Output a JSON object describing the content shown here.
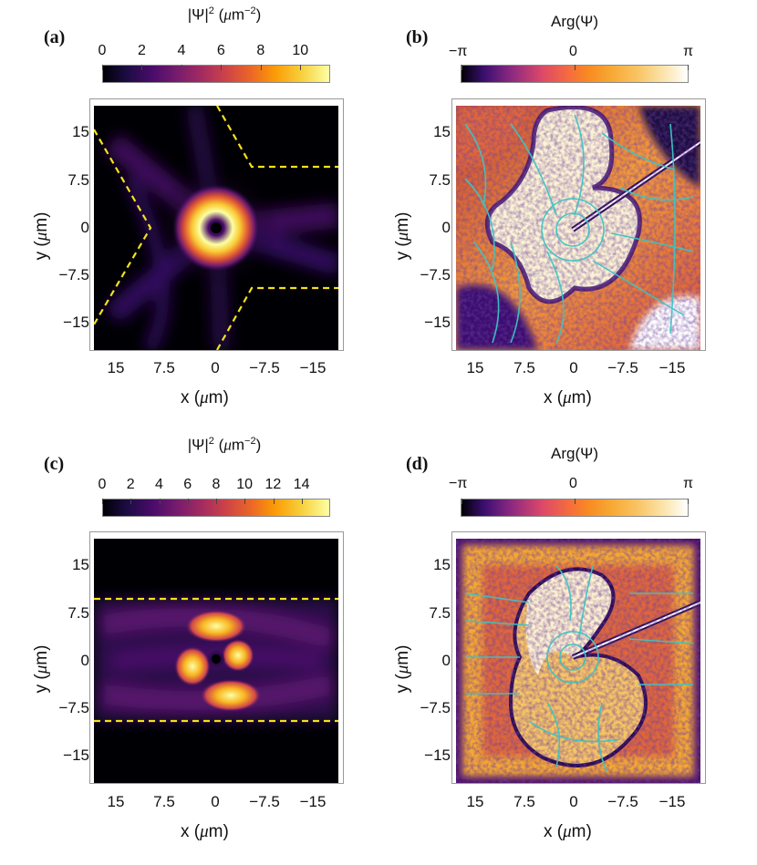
{
  "panels": {
    "a": {
      "label": "(a)",
      "cb_title_main": "|Ψ|",
      "cb_title_sup": "2",
      "cb_title_unit_pre": " (",
      "cb_title_mu": "μ",
      "cb_title_unit_post": "m",
      "cb_title_exp": "−2",
      "cb_title_close": ")",
      "cb_ticks": [
        "0",
        "2",
        "4",
        "6",
        "8",
        "10"
      ]
    },
    "b": {
      "label": "(b)",
      "cb_title": "Arg(Ψ)",
      "cb_ticks": [
        "−π",
        "0",
        "π"
      ]
    },
    "c": {
      "label": "(c)",
      "cb_title_main": "|Ψ|",
      "cb_title_sup": "2",
      "cb_title_unit_pre": " (",
      "cb_title_mu": "μ",
      "cb_title_unit_post": "m",
      "cb_title_exp": "−2",
      "cb_title_close": ")",
      "cb_ticks": [
        "0",
        "2",
        "4",
        "6",
        "8",
        "10",
        "12",
        "14"
      ]
    },
    "d": {
      "label": "(d)",
      "cb_title": "Arg(Ψ)",
      "cb_ticks": [
        "−π",
        "0",
        "π"
      ]
    }
  },
  "axes": {
    "x_label_pre": "x (",
    "x_label_mu": "μ",
    "x_label_post": "m)",
    "y_label_pre": "y (",
    "y_label_mu": "μ",
    "y_label_post": "m)",
    "x_ticks": [
      "15",
      "7.5",
      "0",
      "−7.5",
      "−15"
    ],
    "y_ticks": [
      "15",
      "7.5",
      "0",
      "−7.5",
      "−15"
    ]
  },
  "chart_data": [
    {
      "type": "heatmap",
      "panel": "a",
      "quantity": "|Ψ|^2",
      "range": [
        0,
        11.5
      ],
      "xlim": [
        18,
        -18
      ],
      "ylim": [
        -18,
        18
      ],
      "features": "ring of maximum density around a vortex core at (0,0); Y-shaped junction outlined by dashed yellow boundaries"
    },
    {
      "type": "heatmap",
      "panel": "b",
      "quantity": "Arg(Ψ)",
      "range": [
        "−π",
        "π"
      ],
      "xlim": [
        18,
        -18
      ],
      "ylim": [
        -18,
        18
      ],
      "features": "phase map with vortex at origin and cyan streamlines of the velocity field"
    },
    {
      "type": "heatmap",
      "panel": "c",
      "quantity": "|Ψ|^2",
      "range": [
        0,
        16
      ],
      "xlim": [
        18,
        -18
      ],
      "ylim": [
        -18,
        18
      ],
      "features": "channel bounded by dashed yellow lines at y = ±9.3; lobes around a vortex core at (0,0)"
    },
    {
      "type": "heatmap",
      "panel": "d",
      "quantity": "Arg(Ψ)",
      "range": [
        "−π",
        "π"
      ],
      "xlim": [
        18,
        -18
      ],
      "ylim": [
        -18,
        18
      ],
      "features": "phase map with vortex at origin and cyan streamlines"
    }
  ],
  "colors": {
    "boundary": "#f5e11a",
    "streamline": "#3cc4c4"
  }
}
